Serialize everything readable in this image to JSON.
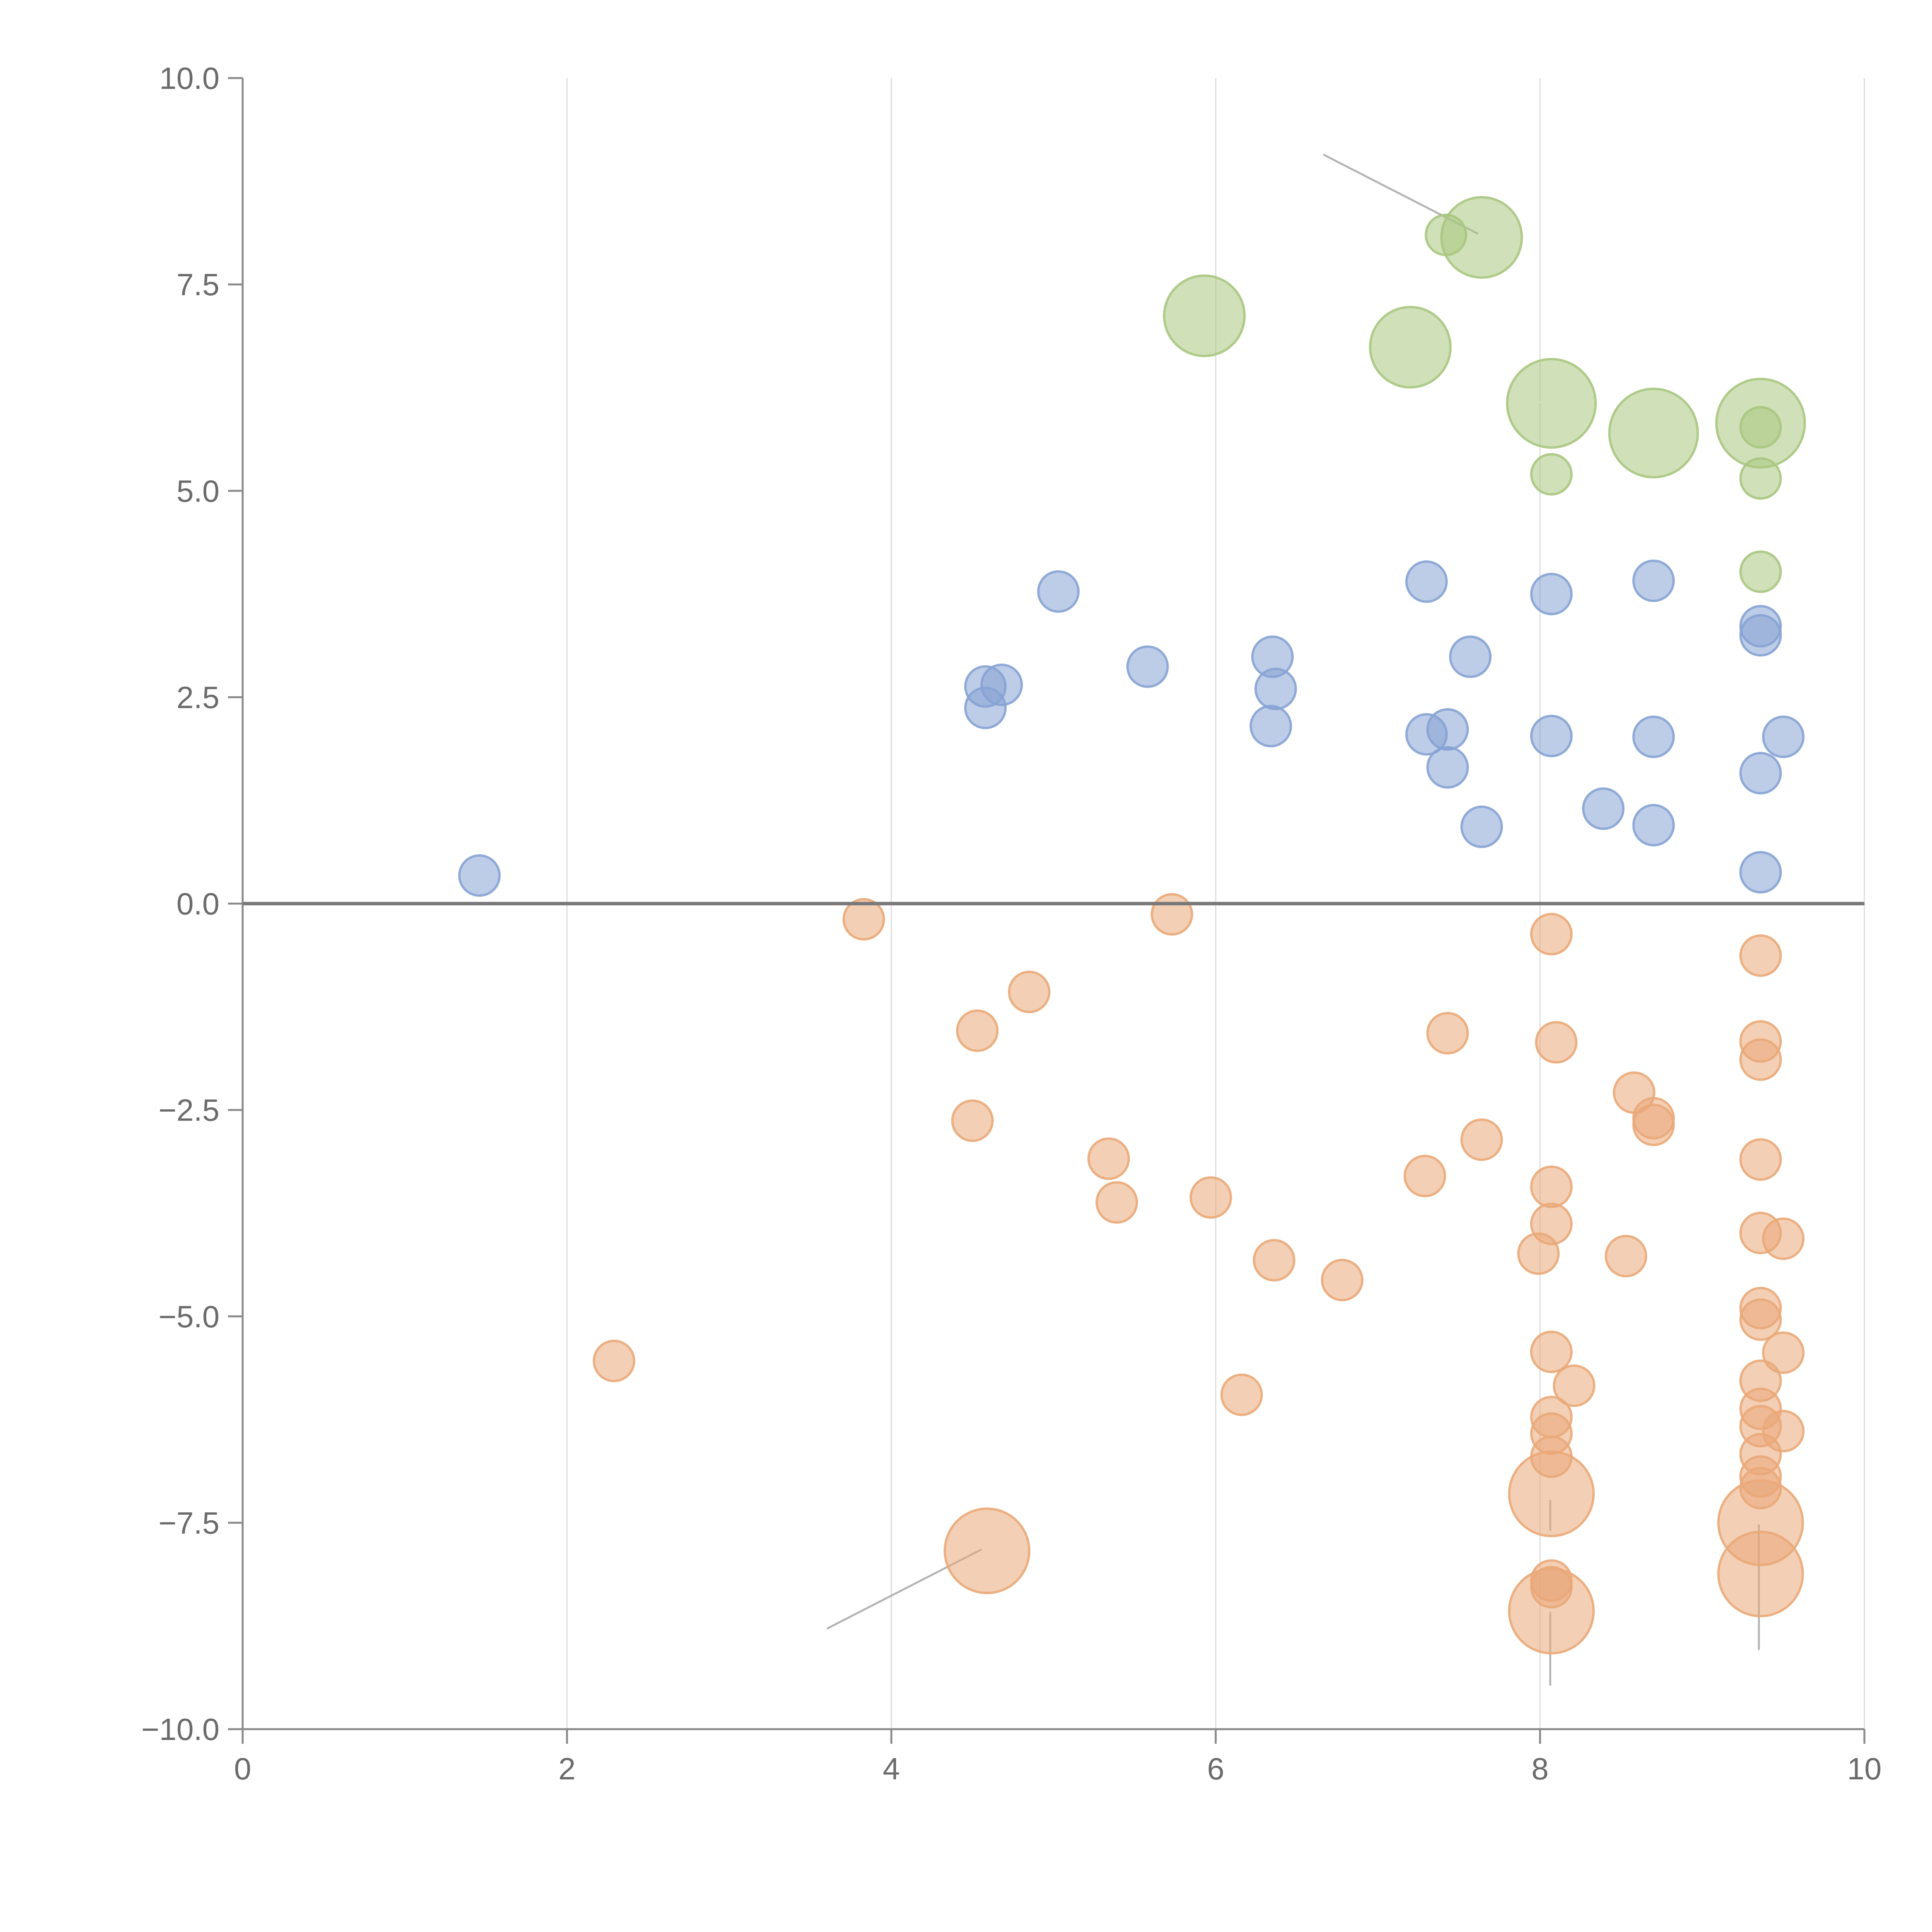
{
  "chart_data": {
    "type": "scatter",
    "title": "",
    "xlabel": "",
    "ylabel": "",
    "xlim": [
      0,
      10
    ],
    "ylim": [
      -10,
      10
    ],
    "grid": "vertical",
    "x_ticks": [
      {
        "value": 0,
        "label": "0"
      },
      {
        "value": 2,
        "label": "2"
      },
      {
        "value": 4,
        "label": "4"
      },
      {
        "value": 6,
        "label": "6"
      },
      {
        "value": 8,
        "label": "8"
      },
      {
        "value": 10,
        "label": "10"
      }
    ],
    "y_ticks": [
      {
        "value": 10,
        "label": "10.0"
      },
      {
        "value": 7.5,
        "label": "7.5"
      },
      {
        "value": 5,
        "label": "5.0"
      },
      {
        "value": 2.5,
        "label": "2.5"
      },
      {
        "value": 0,
        "label": "0.0"
      },
      {
        "value": -2.5,
        "label": "−2.5"
      },
      {
        "value": -5,
        "label": "−5.0"
      },
      {
        "value": -7.5,
        "label": "−7.5"
      },
      {
        "value": -10,
        "label": "−10.0"
      }
    ],
    "series": [
      {
        "name": "green",
        "color": "#a9c77f",
        "points": [
          [
            7.42,
            8.1,
            1
          ],
          [
            7.64,
            8.07,
            2
          ],
          [
            5.93,
            7.12,
            2
          ],
          [
            7.2,
            6.74,
            2
          ],
          [
            8.07,
            6.06,
            2.2
          ],
          [
            8.7,
            5.7,
            2.2
          ],
          [
            9.36,
            5.82,
            2.2
          ],
          [
            9.36,
            5.77,
            1
          ],
          [
            8.07,
            5.2,
            1
          ],
          [
            9.36,
            5.15,
            1
          ],
          [
            9.36,
            4.02,
            1
          ]
        ]
      },
      {
        "name": "blue",
        "color": "#86a3d4",
        "points": [
          [
            1.46,
            0.34,
            1
          ],
          [
            4.58,
            2.63,
            1
          ],
          [
            4.68,
            2.65,
            1
          ],
          [
            4.58,
            2.37,
            1
          ],
          [
            5.03,
            3.78,
            1
          ],
          [
            5.58,
            2.87,
            1
          ],
          [
            6.35,
            2.99,
            1
          ],
          [
            6.37,
            2.6,
            1
          ],
          [
            6.34,
            2.15,
            1
          ],
          [
            7.3,
            3.9,
            1
          ],
          [
            7.57,
            2.99,
            1
          ],
          [
            7.3,
            2.05,
            1
          ],
          [
            7.43,
            2.11,
            1
          ],
          [
            7.43,
            1.65,
            1
          ],
          [
            7.64,
            0.93,
            1
          ],
          [
            8.07,
            3.75,
            1
          ],
          [
            8.07,
            2.03,
            1
          ],
          [
            8.39,
            1.15,
            1
          ],
          [
            8.7,
            3.91,
            1
          ],
          [
            8.7,
            2.02,
            1
          ],
          [
            8.7,
            0.95,
            1
          ],
          [
            9.36,
            3.36,
            1
          ],
          [
            9.36,
            3.25,
            1
          ],
          [
            9.5,
            2.02,
            1
          ],
          [
            9.36,
            1.58,
            1
          ],
          [
            9.36,
            0.38,
            1
          ]
        ]
      },
      {
        "name": "orange",
        "color": "#eaa878",
        "points": [
          [
            3.83,
            -0.19,
            1
          ],
          [
            5.73,
            -0.13,
            1
          ],
          [
            4.85,
            -1.07,
            1
          ],
          [
            4.53,
            -1.54,
            1
          ],
          [
            4.5,
            -2.63,
            1
          ],
          [
            5.34,
            -3.09,
            1
          ],
          [
            5.39,
            -3.62,
            1
          ],
          [
            5.97,
            -3.56,
            1
          ],
          [
            6.36,
            -4.32,
            1
          ],
          [
            6.78,
            -4.56,
            1
          ],
          [
            2.29,
            -5.54,
            1
          ],
          [
            6.16,
            -5.95,
            1
          ],
          [
            4.59,
            -7.84,
            2.1
          ],
          [
            7.43,
            -1.57,
            1
          ],
          [
            7.64,
            -2.86,
            1
          ],
          [
            7.29,
            -3.3,
            1
          ],
          [
            8.07,
            -0.37,
            1
          ],
          [
            8.1,
            -1.68,
            1
          ],
          [
            8.07,
            -3.43,
            1
          ],
          [
            8.07,
            -3.88,
            1
          ],
          [
            7.99,
            -4.24,
            1
          ],
          [
            8.07,
            -5.43,
            1
          ],
          [
            8.21,
            -5.84,
            1
          ],
          [
            8.07,
            -6.22,
            1
          ],
          [
            8.07,
            -6.42,
            1
          ],
          [
            8.07,
            -6.7,
            1
          ],
          [
            8.07,
            -7.15,
            2.1
          ],
          [
            8.07,
            -8.2,
            1
          ],
          [
            8.07,
            -8.28,
            1
          ],
          [
            8.07,
            -8.57,
            2.1
          ],
          [
            8.58,
            -2.29,
            1
          ],
          [
            8.7,
            -2.6,
            1
          ],
          [
            8.7,
            -2.68,
            1
          ],
          [
            8.53,
            -4.27,
            1
          ],
          [
            9.36,
            -0.63,
            1
          ],
          [
            9.36,
            -1.67,
            1
          ],
          [
            9.36,
            -1.89,
            1
          ],
          [
            9.36,
            -3.1,
            1
          ],
          [
            9.36,
            -3.99,
            1
          ],
          [
            9.5,
            -4.06,
            1
          ],
          [
            9.36,
            -4.9,
            1
          ],
          [
            9.36,
            -5.04,
            1
          ],
          [
            9.5,
            -5.44,
            1
          ],
          [
            9.36,
            -5.78,
            1
          ],
          [
            9.36,
            -6.12,
            1
          ],
          [
            9.36,
            -6.33,
            1
          ],
          [
            9.5,
            -6.39,
            1
          ],
          [
            9.36,
            -6.67,
            1
          ],
          [
            9.36,
            -6.94,
            1
          ],
          [
            9.36,
            -7.08,
            1
          ],
          [
            9.36,
            -7.5,
            2.1
          ],
          [
            9.36,
            -8.12,
            2.1
          ]
        ]
      }
    ]
  }
}
